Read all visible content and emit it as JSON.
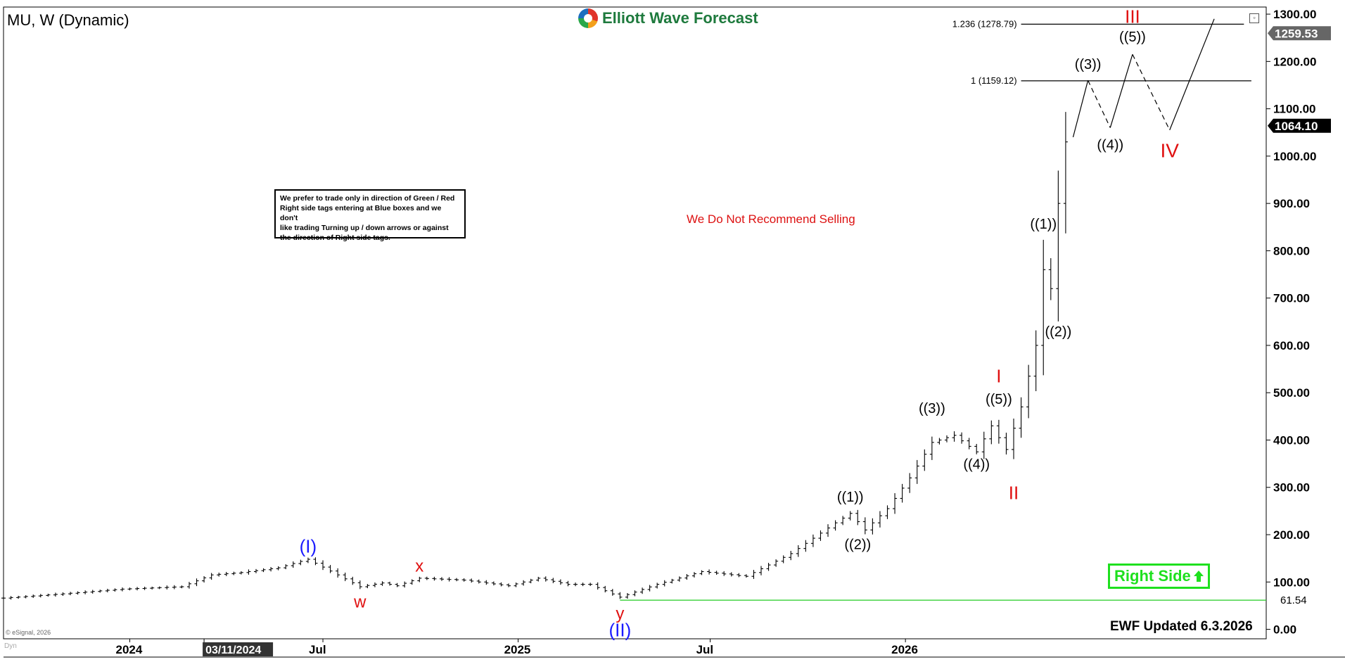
{
  "header": {
    "symbol_title": "MU, W (Dynamic)",
    "logo_text": "Elliott Wave Forecast"
  },
  "notes": {
    "trade_box": [
      "We prefer to trade only in direction of Green / Red",
      "Right side tags entering at Blue boxes and we don't",
      "like trading Turning up / down arrows or against",
      "the direction of Right side tags."
    ],
    "no_sell": "We Do Not Recommend Selling",
    "right_side": "Right Side",
    "updated": "EWF Updated 6.3.2026",
    "copyright": "© eSignal, 2026",
    "dyn_label": "Dyn"
  },
  "chart_data": {
    "type": "line",
    "style": "ohlc-bars",
    "interval": "weekly",
    "ylim": [
      -20,
      1315
    ],
    "y_ticks": [
      "1300.00",
      "1200.00",
      "1100.00",
      "1000.00",
      "900.00",
      "800.00",
      "700.00",
      "600.00",
      "500.00",
      "400.00",
      "300.00",
      "200.00",
      "100.00",
      "0.00"
    ],
    "x_labels": [
      {
        "label": "2024",
        "date": "2024-01-01"
      },
      {
        "label": "03/11/2024",
        "date": "2024-03-11",
        "highlighted": true
      },
      {
        "label": "Jul",
        "date": "2024-07-01"
      },
      {
        "label": "2025",
        "date": "2025-01-01"
      },
      {
        "label": "Jul",
        "date": "2025-07-01"
      },
      {
        "label": "2026",
        "date": "2026-01-01"
      }
    ],
    "xlim": [
      "2023-09-04",
      "2026-12-07"
    ],
    "price_tags": [
      {
        "label": "1259.53",
        "value": 1259.53
      },
      {
        "label": "1064.10",
        "value": 1064.1
      }
    ],
    "support_line": {
      "label": "61.54",
      "value": 61.54,
      "from": "2025-04-07",
      "color": "#22cc22"
    },
    "fib_levels": [
      {
        "label": "1.236 (1278.79)",
        "value": 1278.79,
        "from": "2026-04-20",
        "to": "2026-11-16"
      },
      {
        "label": "1 (1159.12)",
        "value": 1159.12,
        "from": "2026-04-20",
        "to": "2026-11-23"
      }
    ],
    "anchors": [
      {
        "date": "2023-09-04",
        "price": 66
      },
      {
        "date": "2023-10-30",
        "price": 75
      },
      {
        "date": "2023-12-25",
        "price": 85
      },
      {
        "date": "2024-02-19",
        "price": 90
      },
      {
        "date": "2024-03-18",
        "price": 115
      },
      {
        "date": "2024-04-15",
        "price": 120
      },
      {
        "date": "2024-05-20",
        "price": 130
      },
      {
        "date": "2024-06-17",
        "price": 148
      },
      {
        "date": "2024-07-15",
        "price": 115
      },
      {
        "date": "2024-08-05",
        "price": 90
      },
      {
        "date": "2024-08-26",
        "price": 98
      },
      {
        "date": "2024-09-09",
        "price": 92
      },
      {
        "date": "2024-09-30",
        "price": 108
      },
      {
        "date": "2024-11-11",
        "price": 104
      },
      {
        "date": "2024-12-23",
        "price": 92
      },
      {
        "date": "2025-01-20",
        "price": 108
      },
      {
        "date": "2025-02-17",
        "price": 95
      },
      {
        "date": "2025-03-10",
        "price": 95
      },
      {
        "date": "2025-04-07",
        "price": 68
      },
      {
        "date": "2025-05-12",
        "price": 95
      },
      {
        "date": "2025-06-23",
        "price": 122
      },
      {
        "date": "2025-08-04",
        "price": 112
      },
      {
        "date": "2025-09-15",
        "price": 160
      },
      {
        "date": "2025-10-27",
        "price": 225
      },
      {
        "date": "2025-11-10",
        "price": 245
      },
      {
        "date": "2025-11-24",
        "price": 210
      },
      {
        "date": "2025-12-15",
        "price": 255
      },
      {
        "date": "2026-01-05",
        "price": 320
      },
      {
        "date": "2026-01-26",
        "price": 395
      },
      {
        "date": "2026-02-16",
        "price": 410
      },
      {
        "date": "2026-03-09",
        "price": 375
      },
      {
        "date": "2026-03-23",
        "price": 430
      },
      {
        "date": "2026-04-06",
        "price": 380
      },
      {
        "date": "2026-04-20",
        "price": 470
      },
      {
        "date": "2026-05-04",
        "price": 600
      },
      {
        "date": "2026-05-11",
        "price": 760
      },
      {
        "date": "2026-05-18",
        "price": 720
      },
      {
        "date": "2026-05-25",
        "price": 900
      },
      {
        "date": "2026-06-01",
        "price": 1030
      }
    ],
    "projection": [
      {
        "date": "2026-06-08",
        "price": 1040
      },
      {
        "date": "2026-06-22",
        "price": 1160
      },
      {
        "date": "2026-07-13",
        "price": 1060
      },
      {
        "date": "2026-08-03",
        "price": 1215
      },
      {
        "date": "2026-09-07",
        "price": 1055
      },
      {
        "date": "2026-10-19",
        "price": 1290
      }
    ],
    "projection_dashed_segments": [
      1,
      3
    ],
    "wave_labels": [
      {
        "text": "(I)",
        "date": "2024-06-17",
        "price": 150,
        "color": "#1a1aff",
        "pos": "above",
        "size": 26
      },
      {
        "text": "w",
        "date": "2024-08-05",
        "price": 88,
        "color": "#e01010",
        "pos": "below",
        "size": 24
      },
      {
        "text": "x",
        "date": "2024-09-30",
        "price": 110,
        "color": "#e01010",
        "pos": "above",
        "size": 24
      },
      {
        "text": "y",
        "date": "2025-04-07",
        "price": 63,
        "color": "#e01010",
        "pos": "below",
        "size": 24
      },
      {
        "text": "(II)",
        "date": "2025-04-07",
        "price": 30,
        "color": "#1a1aff",
        "pos": "below",
        "size": 26
      },
      {
        "text": "((1))",
        "date": "2025-11-10",
        "price": 258,
        "color": "#000",
        "pos": "above",
        "size": 20
      },
      {
        "text": "((2))",
        "date": "2025-11-17",
        "price": 205,
        "color": "#000",
        "pos": "below",
        "size": 20
      },
      {
        "text": "((3))",
        "date": "2026-01-26",
        "price": 445,
        "color": "#000",
        "pos": "above",
        "size": 20
      },
      {
        "text": "((4))",
        "date": "2026-03-09",
        "price": 375,
        "color": "#000",
        "pos": "below",
        "size": 20
      },
      {
        "text": "((5))",
        "date": "2026-03-30",
        "price": 465,
        "color": "#000",
        "pos": "above",
        "size": 20
      },
      {
        "text": "I",
        "date": "2026-03-30",
        "price": 510,
        "color": "#e01010",
        "pos": "above",
        "size": 26
      },
      {
        "text": "II",
        "date": "2026-04-13",
        "price": 320,
        "color": "#e01010",
        "pos": "below",
        "size": 26
      },
      {
        "text": "((1))",
        "date": "2026-05-11",
        "price": 835,
        "color": "#000",
        "pos": "above",
        "size": 20
      },
      {
        "text": "((2))",
        "date": "2026-05-25",
        "price": 655,
        "color": "#000",
        "pos": "below",
        "size": 20
      },
      {
        "text": "((3))",
        "date": "2026-06-22",
        "price": 1172,
        "color": "#000",
        "pos": "above",
        "size": 20
      },
      {
        "text": "((4))",
        "date": "2026-07-13",
        "price": 1050,
        "color": "#000",
        "pos": "below",
        "size": 20
      },
      {
        "text": "((5))",
        "date": "2026-08-03",
        "price": 1230,
        "color": "#000",
        "pos": "above",
        "size": 20
      },
      {
        "text": "III",
        "date": "2026-08-03",
        "price": 1270,
        "color": "#e01010",
        "pos": "above",
        "size": 26
      },
      {
        "text": "IV",
        "date": "2026-09-07",
        "price": 1045,
        "color": "#e01010",
        "pos": "below",
        "size": 28
      }
    ]
  }
}
